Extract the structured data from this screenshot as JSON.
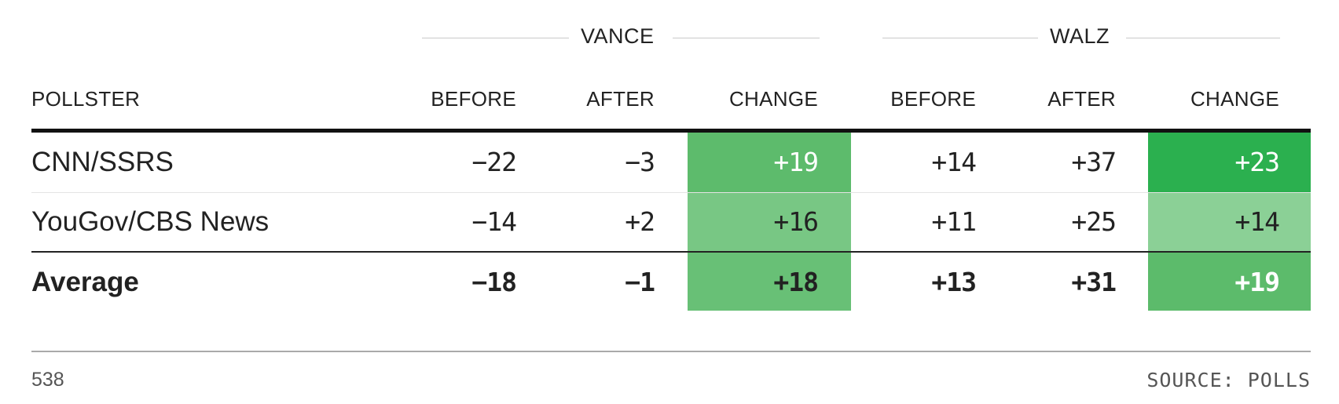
{
  "groups": {
    "vance": "VANCE",
    "walz": "WALZ"
  },
  "headers": {
    "pollster": "POLLSTER",
    "before": "BEFORE",
    "after": "AFTER",
    "change": "CHANGE"
  },
  "rows": [
    {
      "pollster": "CNN/SSRS",
      "vance_before": "−22",
      "vance_after": "−3",
      "vance_change": "+19",
      "walz_before": "+14",
      "walz_after": "+37",
      "walz_change": "+23"
    },
    {
      "pollster": "YouGov/CBS News",
      "vance_before": "−14",
      "vance_after": "+2",
      "vance_change": "+16",
      "walz_before": "+11",
      "walz_after": "+25",
      "walz_change": "+14"
    }
  ],
  "average": {
    "pollster": "Average",
    "vance_before": "−18",
    "vance_after": "−1",
    "vance_change": "+18",
    "walz_before": "+13",
    "walz_after": "+31",
    "walz_change": "+19"
  },
  "colors": {
    "change_19": "#5dbb6c",
    "change_16": "#78c784",
    "change_18": "#68c076",
    "change_23": "#2bb04f",
    "change_14": "#8bd096",
    "change_avg_19": "#5cbb6b"
  },
  "footer": {
    "brand": "538",
    "source": "SOURCE: POLLS"
  }
}
